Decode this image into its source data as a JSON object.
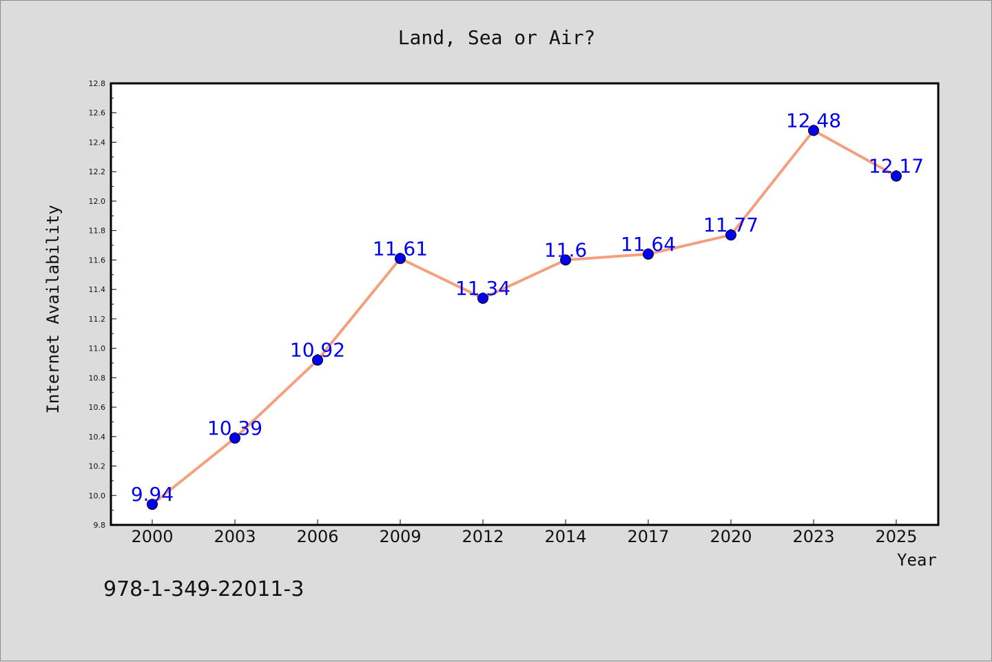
{
  "chart_data": {
    "type": "line",
    "title": "Land, Sea or Air?",
    "xlabel": "Year",
    "ylabel": "Internet Availability",
    "categories": [
      "2000",
      "2003",
      "2006",
      "2009",
      "2012",
      "2014",
      "2017",
      "2020",
      "2023",
      "2025"
    ],
    "values": [
      9.94,
      10.39,
      10.92,
      11.61,
      11.34,
      11.6,
      11.64,
      11.77,
      12.48,
      12.17
    ],
    "data_labels": [
      "9.94",
      "10.39",
      "10.92",
      "11.61",
      "11.34",
      "11.6",
      "11.64",
      "11.77",
      "12.48",
      "12.17"
    ],
    "ylim": [
      9.8,
      12.8
    ],
    "yticks": [
      "9.8",
      "10.0",
      "10.2",
      "10.4",
      "10.6",
      "10.8",
      "11.0",
      "11.2",
      "11.4",
      "11.6",
      "11.8",
      "12.0",
      "12.2",
      "12.4",
      "12.6",
      "12.8"
    ],
    "grid": false,
    "line_color": "#f4a07e",
    "marker_color": "#0000ee",
    "label_color": "#0000ee"
  },
  "footer": {
    "isbn": "978-1-349-22011-3"
  }
}
